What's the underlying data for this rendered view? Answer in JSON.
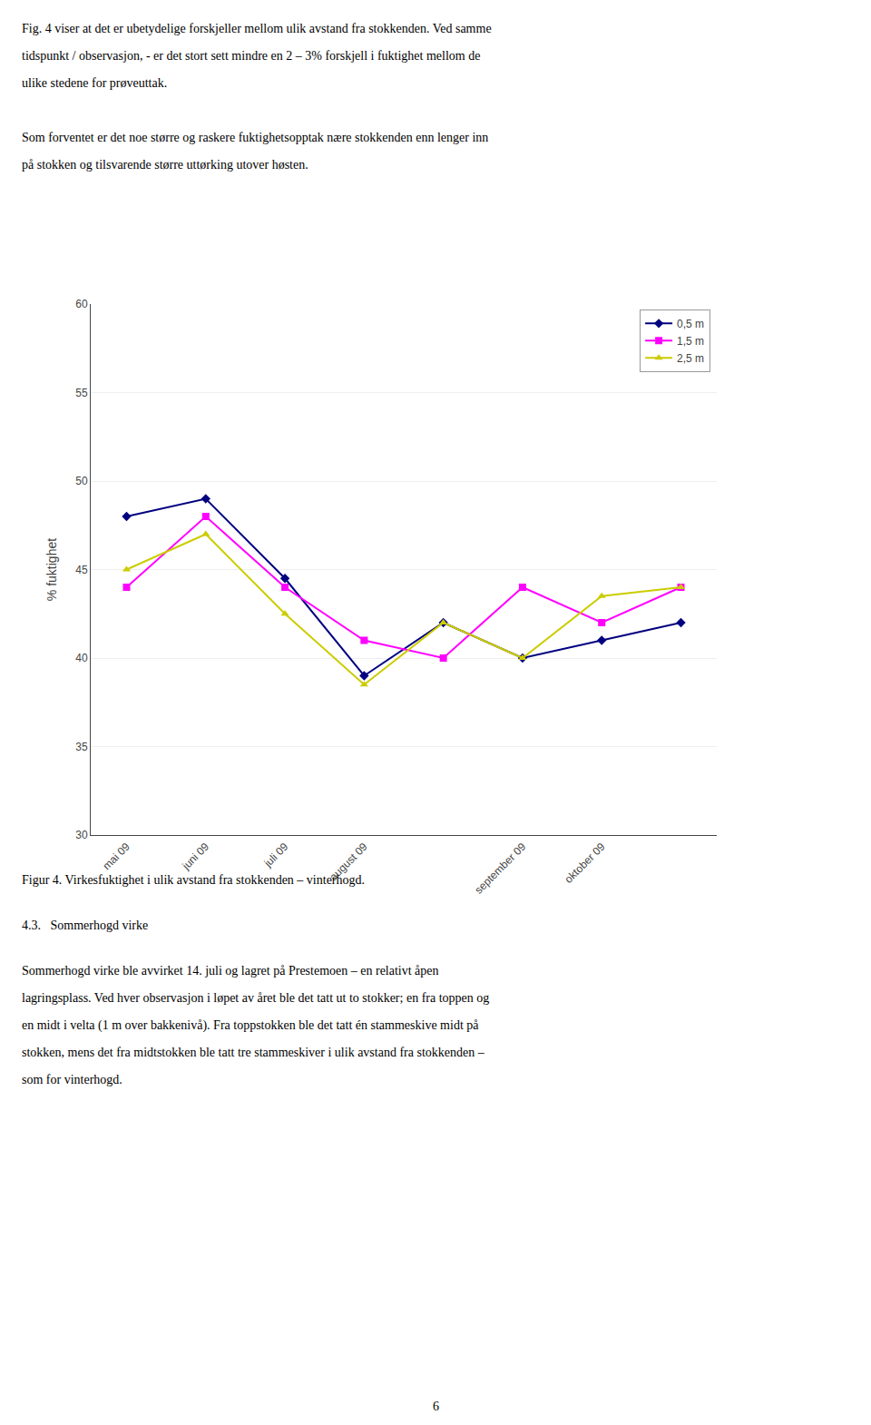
{
  "chart_data": {
    "type": "line",
    "categories": [
      "mai 09",
      "juni 09",
      "juli 09",
      "august 09",
      null,
      "september 09",
      "oktober 09",
      null
    ],
    "series": [
      {
        "name": "0,5 m",
        "color": "#000080",
        "marker": "diamond",
        "values": [
          48,
          49,
          44.5,
          39,
          42,
          40,
          41,
          42
        ]
      },
      {
        "name": "1,5 m",
        "color": "#FF00FF",
        "marker": "square",
        "values": [
          44,
          48,
          44,
          41,
          40,
          44,
          42,
          44
        ]
      },
      {
        "name": "2,5 m",
        "color": "#CCCC00",
        "marker": "triangle-up",
        "values": [
          45,
          47,
          42.5,
          38.5,
          42,
          40,
          43.5,
          44
        ]
      }
    ],
    "y_label": "% fuktighet",
    "ylim": [
      30,
      60
    ],
    "yticks": [
      30,
      35,
      40,
      45,
      50,
      55,
      60
    ],
    "grid": true,
    "legend": "upper right",
    "annotations": [
      "Fig. 4 viser at det er ubetydelige forskjeller mellom ulik avstand fra stokkenden. Ved samme",
      "tidspunkt / observasjon, - er det stort sett mindre en 2 – 3% forskjell i fuktighet mellom de",
      "ulike stedene for prøveuttak.",
      "Som forventet er det noe større og raskere fuktighetsopptak nære stokkenden enn lenger inn",
      "på stokken og tilsvarende større uttørking utover høsten.",
      "Figur 4. Virkesfuktighet i ulik avstand fra stokkenden – vinterhogd.",
      "4.3.   Sommerhogd virke",
      "Sommerhogd virke ble avvirket 14. juli og lagret på Prestemoen – en relativt åpen",
      "lagringsplass. Ved hver observasjon i løpet av året ble det tatt ut to stokker; en fra toppen og",
      "en midt i velta (1 m over bakkenivå). Fra toppstokken ble det tatt én stammeskive midt på",
      "stokken, mens det fra midtstokken ble tatt tre stammeskiver i ulik avstand fra stokkenden –",
      "som for vinterhogd.",
      "6"
    ]
  }
}
